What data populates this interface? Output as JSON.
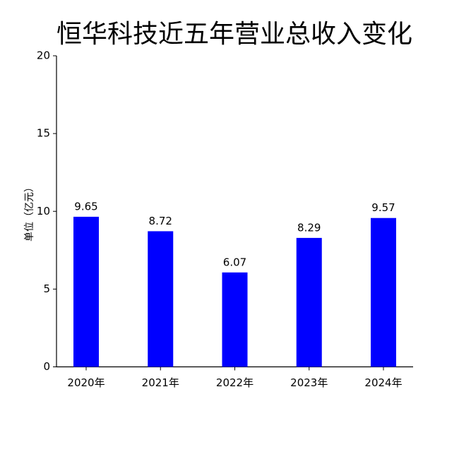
{
  "chart_data": {
    "type": "bar",
    "title": "恒华科技近五年营业总收入变化",
    "y_label": "单位（亿元）",
    "categories": [
      "2020年",
      "2021年",
      "2022年",
      "2023年",
      "2024年"
    ],
    "values": [
      9.65,
      8.72,
      6.07,
      8.29,
      9.57
    ],
    "color": "#0000ff",
    "ylim": [
      0,
      20
    ],
    "yticks": [
      0,
      5,
      10,
      15,
      20
    ],
    "grid": false
  }
}
